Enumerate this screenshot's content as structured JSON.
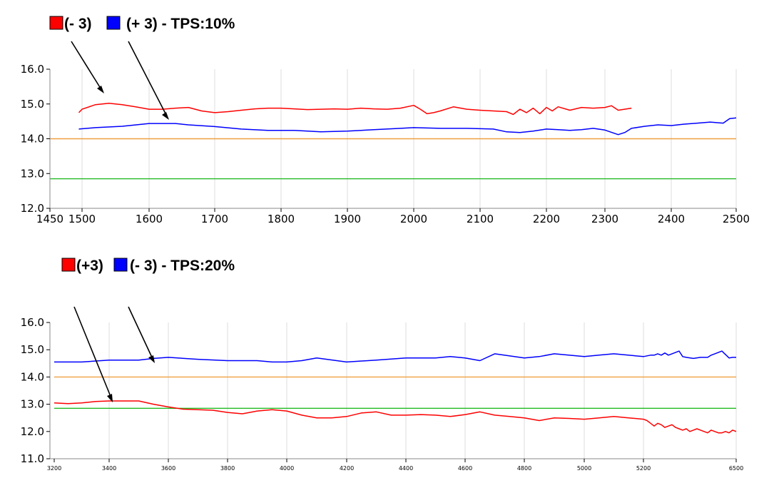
{
  "colors": {
    "red": "#ff0000",
    "blue": "#0000ff",
    "orange": "#f0a040",
    "green": "#22bb22",
    "grid": "#dcdcdc"
  },
  "chart_data": [
    {
      "type": "line",
      "legend": [
        {
          "label": "(- 3)",
          "color": "#ff0000"
        },
        {
          "label": "(+ 3) - TPS:10%",
          "color": "#0000ff"
        }
      ],
      "xlim": [
        1450,
        2500
      ],
      "ylim": [
        12.0,
        16.0
      ],
      "x_ticks": [
        "1450",
        "1500",
        "1600",
        "1700",
        "1800",
        "1900",
        "2000",
        "2100",
        "2200",
        "2300",
        "2400",
        "2500"
      ],
      "y_ticks": [
        "16.0",
        "15.0",
        "14.0",
        "13.0",
        "12.0"
      ],
      "grid": "vertical",
      "series": [
        {
          "color": "#ff0000",
          "x": [
            1495,
            1500,
            1520,
            1540,
            1560,
            1580,
            1600,
            1620,
            1640,
            1660,
            1680,
            1700,
            1720,
            1740,
            1760,
            1780,
            1800,
            1820,
            1840,
            1860,
            1880,
            1900,
            1920,
            1940,
            1960,
            1980,
            2000,
            2010,
            2020,
            2030,
            2040,
            2060,
            2080,
            2100,
            2120,
            2140,
            2150,
            2160,
            2170,
            2180,
            2190,
            2200,
            2210,
            2220,
            2240,
            2260,
            2280,
            2300,
            2310,
            2320,
            2340
          ],
          "y": [
            14.75,
            14.85,
            14.98,
            15.02,
            14.98,
            14.92,
            14.85,
            14.85,
            14.88,
            14.9,
            14.8,
            14.75,
            14.78,
            14.82,
            14.86,
            14.88,
            14.88,
            14.86,
            14.84,
            14.85,
            14.86,
            14.85,
            14.88,
            14.86,
            14.85,
            14.88,
            14.96,
            14.85,
            14.72,
            14.75,
            14.8,
            14.92,
            14.85,
            14.82,
            14.8,
            14.78,
            14.7,
            14.85,
            14.75,
            14.88,
            14.72,
            14.9,
            14.8,
            14.92,
            14.82,
            14.9,
            14.88,
            14.9,
            14.95,
            14.82,
            14.88
          ]
        },
        {
          "color": "#0000ff",
          "x": [
            1495,
            1520,
            1560,
            1600,
            1640,
            1660,
            1700,
            1740,
            1780,
            1820,
            1860,
            1900,
            1940,
            1980,
            2000,
            2040,
            2080,
            2120,
            2140,
            2160,
            2180,
            2200,
            2220,
            2240,
            2260,
            2280,
            2300,
            2320,
            2330,
            2340,
            2360,
            2380,
            2400,
            2420,
            2440,
            2460,
            2480,
            2490,
            2500
          ],
          "y": [
            14.28,
            14.32,
            14.36,
            14.44,
            14.44,
            14.4,
            14.35,
            14.28,
            14.24,
            14.24,
            14.2,
            14.22,
            14.26,
            14.3,
            14.32,
            14.3,
            14.3,
            14.28,
            14.2,
            14.18,
            14.22,
            14.28,
            14.26,
            14.24,
            14.26,
            14.3,
            14.25,
            14.12,
            14.18,
            14.3,
            14.36,
            14.4,
            14.38,
            14.42,
            14.45,
            14.48,
            14.45,
            14.58,
            14.6
          ]
        },
        {
          "color": "#f0a040",
          "x": [
            1450,
            2500
          ],
          "y": [
            14.0,
            14.0
          ]
        },
        {
          "color": "#22bb22",
          "x": [
            1450,
            2500
          ],
          "y": [
            12.85,
            12.85
          ]
        }
      ]
    },
    {
      "type": "line",
      "legend": [
        {
          "label": "(+3)",
          "color": "#ff0000"
        },
        {
          "label": "(- 3) - TPS:20%",
          "color": "#0000ff"
        }
      ],
      "xlim": [
        3200,
        6500
      ],
      "ylim": [
        11.0,
        16.0
      ],
      "x_ticks": [
        "3200",
        "3400",
        "3600",
        "3800",
        "4000",
        "4200",
        "4400",
        "4600",
        "4800",
        "5000",
        "5200",
        "6500"
      ],
      "y_ticks": [
        "16.0",
        "15.0",
        "14.0",
        "13.0",
        "12.0",
        "11.0"
      ],
      "grid": "vertical",
      "series": [
        {
          "color": "#0000ff",
          "x": [
            3200,
            3300,
            3400,
            3500,
            3550,
            3600,
            3700,
            3800,
            3900,
            3950,
            4000,
            4050,
            4100,
            4200,
            4300,
            4400,
            4500,
            4550,
            4600,
            4650,
            4700,
            4800,
            4850,
            4900,
            5000,
            5050,
            5100,
            5200,
            5300,
            5350,
            5400,
            5450,
            5500,
            5550,
            5600,
            5700,
            5750,
            5800,
            5900,
            6000,
            6100,
            6150,
            6200,
            6300,
            6400,
            6450,
            6500
          ],
          "y": [
            14.55,
            14.55,
            14.62,
            14.62,
            14.68,
            14.72,
            14.65,
            14.6,
            14.6,
            14.55,
            14.55,
            14.6,
            14.7,
            14.55,
            14.62,
            14.7,
            14.7,
            14.75,
            14.7,
            14.6,
            14.85,
            14.7,
            14.75,
            14.85,
            14.75,
            14.8,
            14.85,
            14.75,
            14.8,
            14.8,
            14.85,
            14.8,
            14.88,
            14.8,
            14.85,
            14.95,
            14.75,
            14.72,
            14.68,
            14.72,
            14.72,
            14.8,
            14.85,
            14.95,
            14.7,
            14.72,
            14.72
          ]
        },
        {
          "color": "#ff0000",
          "x": [
            3200,
            3250,
            3300,
            3350,
            3400,
            3450,
            3500,
            3550,
            3600,
            3650,
            3700,
            3750,
            3800,
            3850,
            3900,
            3950,
            4000,
            4050,
            4100,
            4150,
            4200,
            4250,
            4300,
            4350,
            4400,
            4450,
            4500,
            4550,
            4600,
            4650,
            4700,
            4750,
            4800,
            4850,
            4900,
            4950,
            5000,
            5050,
            5100,
            5150,
            5200,
            5250,
            5300,
            5350,
            5400,
            5450,
            5500,
            5550,
            5600,
            5650,
            5700,
            5750,
            5800,
            5850,
            5900,
            5950,
            6000,
            6050,
            6100,
            6150,
            6200,
            6250,
            6300,
            6350,
            6400,
            6450,
            6500
          ],
          "y": [
            13.05,
            13.02,
            13.05,
            13.1,
            13.12,
            13.12,
            13.12,
            13.0,
            12.9,
            12.82,
            12.8,
            12.78,
            12.7,
            12.65,
            12.75,
            12.8,
            12.75,
            12.6,
            12.5,
            12.5,
            12.55,
            12.68,
            12.72,
            12.6,
            12.6,
            12.62,
            12.6,
            12.55,
            12.62,
            12.72,
            12.6,
            12.55,
            12.5,
            12.4,
            12.5,
            12.48,
            12.45,
            12.5,
            12.55,
            12.5,
            12.45,
            12.4,
            12.3,
            12.2,
            12.3,
            12.25,
            12.15,
            12.2,
            12.25,
            12.15,
            12.1,
            12.05,
            12.1,
            12.0,
            12.05,
            12.1,
            12.05,
            12.0,
            11.95,
            12.05,
            12.0,
            11.95,
            11.95,
            12.0,
            11.95,
            12.05,
            12.0
          ]
        },
        {
          "color": "#f0a040",
          "x": [
            3200,
            6500
          ],
          "y": [
            14.0,
            14.0
          ]
        },
        {
          "color": "#22bb22",
          "x": [
            3200,
            6500
          ],
          "y": [
            12.85,
            12.85
          ]
        }
      ]
    }
  ]
}
